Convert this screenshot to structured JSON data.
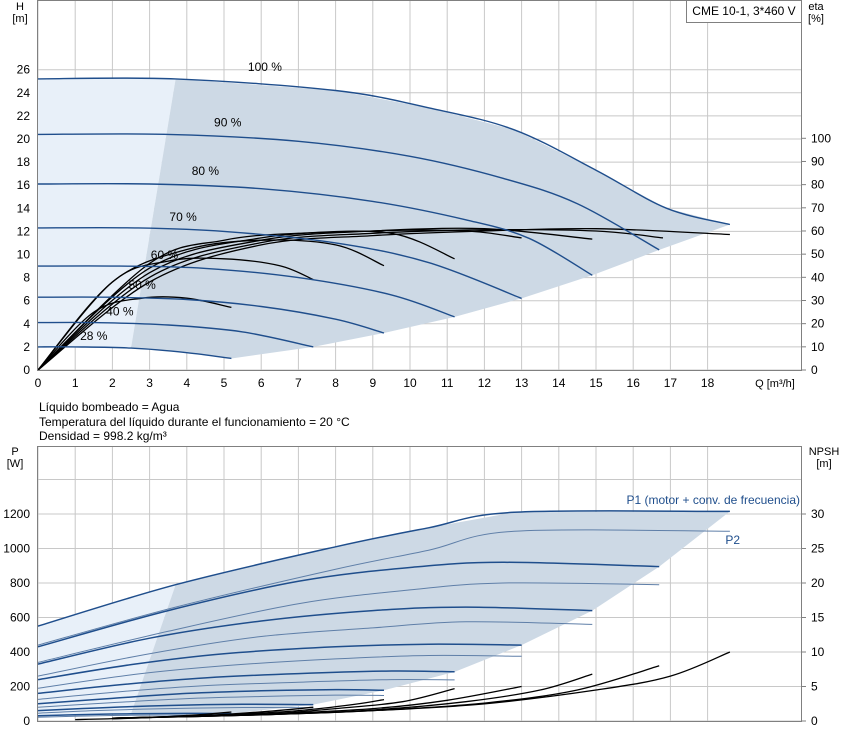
{
  "info": {
    "liquid": "Líquido bombeado = Agua",
    "temperature": "Temperatura del líquido durante el funcionamiento = 20 °C",
    "density": "Densidad = 998.2 kg/m³"
  },
  "chart_data": [
    {
      "type": "line",
      "title": "CME 10-1, 3*460 V",
      "ylabel_left": "H\n[m]",
      "ylabel_right": "eta\n[%]",
      "xlabel": "Q [m³/h]",
      "xlim": [
        0,
        19
      ],
      "ylim": [
        0,
        28
      ],
      "xticks": [
        0,
        1,
        2,
        3,
        4,
        5,
        6,
        7,
        8,
        9,
        10,
        11,
        12,
        13,
        14,
        15,
        16,
        17,
        18
      ],
      "yticks_left": [
        0,
        2,
        4,
        6,
        8,
        10,
        12,
        14,
        16,
        18,
        20,
        22,
        24,
        26
      ],
      "yticks_right": [
        0,
        10,
        20,
        30,
        40,
        50,
        60,
        70,
        80,
        90,
        100
      ],
      "right_axis_range": [
        0,
        100
      ],
      "grid": true,
      "operating_area_color": "#cdd9e5",
      "curve_color": "#1f4e8c",
      "head_curves": [
        {
          "label": "100 %",
          "points": [
            [
              0,
              25.2
            ],
            [
              3.7,
              25.2
            ],
            [
              8,
              24.2
            ],
            [
              10.5,
              22.7
            ],
            [
              12.8,
              20.8
            ],
            [
              15,
              17.3
            ],
            [
              16.9,
              14
            ],
            [
              18.6,
              12.6
            ]
          ]
        },
        {
          "label": "90 %",
          "points": [
            [
              0,
              20.4
            ],
            [
              3.5,
              20.4
            ],
            [
              7,
              19.8
            ],
            [
              10,
              18.5
            ],
            [
              12.5,
              16.6
            ],
            [
              14.5,
              14.4
            ],
            [
              16.7,
              10.4
            ]
          ]
        },
        {
          "label": "80 %",
          "points": [
            [
              0,
              16.1
            ],
            [
              3,
              16.1
            ],
            [
              6,
              15.7
            ],
            [
              9,
              14.6
            ],
            [
              11.5,
              13
            ],
            [
              13.2,
              11.4
            ],
            [
              14.9,
              8.2
            ]
          ]
        },
        {
          "label": "70 %",
          "points": [
            [
              0,
              12.3
            ],
            [
              2.6,
              12.3
            ],
            [
              5,
              12
            ],
            [
              8,
              11
            ],
            [
              10.5,
              9.3
            ],
            [
              13,
              6.2
            ]
          ]
        },
        {
          "label": "60 %",
          "points": [
            [
              0,
              9
            ],
            [
              2.2,
              9
            ],
            [
              4.5,
              8.8
            ],
            [
              7,
              8
            ],
            [
              9.5,
              6.5
            ],
            [
              11.2,
              4.6
            ]
          ]
        },
        {
          "label": "50 %",
          "points": [
            [
              0,
              6.3
            ],
            [
              1.9,
              6.3
            ],
            [
              4,
              6.1
            ],
            [
              6,
              5.5
            ],
            [
              8,
              4.4
            ],
            [
              9.3,
              3.2
            ]
          ]
        },
        {
          "label": "40 %",
          "points": [
            [
              0,
              4.1
            ],
            [
              1.5,
              4.1
            ],
            [
              3.5,
              3.9
            ],
            [
              5.5,
              3.3
            ],
            [
              7.4,
              2
            ]
          ]
        },
        {
          "label": "28 %",
          "points": [
            [
              0,
              2
            ],
            [
              1,
              2
            ],
            [
              2.5,
              1.9
            ],
            [
              4,
              1.5
            ],
            [
              5.2,
              1
            ]
          ]
        }
      ],
      "efficiency_curves": [
        {
          "points": [
            [
              0,
              0
            ],
            [
              3,
              38
            ],
            [
              6,
              54
            ],
            [
              9,
              58
            ],
            [
              12,
              60
            ],
            [
              15,
              61
            ],
            [
              18.6,
              58.5
            ]
          ]
        },
        {
          "points": [
            [
              0,
              0
            ],
            [
              3,
              40
            ],
            [
              6,
              55
            ],
            [
              9,
              59
            ],
            [
              12,
              60.5
            ],
            [
              15,
              60
            ],
            [
              16.8,
              57
            ]
          ]
        },
        {
          "points": [
            [
              0,
              0
            ],
            [
              3,
              42
            ],
            [
              6,
              56
            ],
            [
              9,
              60
            ],
            [
              12,
              61
            ],
            [
              14.9,
              56.5
            ]
          ]
        },
        {
          "points": [
            [
              0,
              0
            ],
            [
              3,
              44
            ],
            [
              6,
              57
            ],
            [
              9,
              60
            ],
            [
              11.5,
              60
            ],
            [
              13,
              57
            ]
          ]
        },
        {
          "points": [
            [
              0,
              0
            ],
            [
              3,
              46
            ],
            [
              5,
              56
            ],
            [
              7,
              59
            ],
            [
              9.5,
              59
            ],
            [
              11.2,
              48
            ]
          ]
        },
        {
          "points": [
            [
              0,
              0
            ],
            [
              2,
              38
            ],
            [
              4,
              52
            ],
            [
              6,
              56
            ],
            [
              8,
              54
            ],
            [
              9.3,
              45
            ]
          ]
        },
        {
          "points": [
            [
              0,
              0
            ],
            [
              2,
              38
            ],
            [
              3.5,
              47
            ],
            [
              5,
              48
            ],
            [
              6.5,
              45
            ],
            [
              7.4,
              39
            ]
          ]
        },
        {
          "points": [
            [
              0,
              0
            ],
            [
              1.5,
              25
            ],
            [
              2.8,
              31
            ],
            [
              4,
              31
            ],
            [
              5.2,
              27
            ]
          ]
        }
      ]
    },
    {
      "type": "line",
      "ylabel_left": "P\n[W]",
      "ylabel_right": "NPSH\n[m]",
      "xlim": [
        0,
        19
      ],
      "ylim": [
        0,
        1400
      ],
      "yticks_left": [
        0,
        200,
        400,
        600,
        800,
        1000,
        1200
      ],
      "yticks_right": [
        0,
        5,
        10,
        15,
        20,
        25,
        30
      ],
      "right_axis_range": [
        0,
        35
      ],
      "grid": true,
      "series_labels": {
        "p1": "P1 (motor + conv. de frecuencia)",
        "p2": "P2"
      },
      "p1_curves": [
        {
          "points": [
            [
              0,
              550
            ],
            [
              3.7,
              790
            ],
            [
              8,
              1010
            ],
            [
              10.5,
              1120
            ],
            [
              12.8,
              1210
            ],
            [
              18.6,
              1215
            ]
          ]
        },
        {
          "points": [
            [
              0,
              430
            ],
            [
              3.5,
              640
            ],
            [
              7,
              810
            ],
            [
              10,
              890
            ],
            [
              12.5,
              920
            ],
            [
              16.7,
              895
            ]
          ]
        },
        {
          "points": [
            [
              0,
              330
            ],
            [
              3,
              480
            ],
            [
              6,
              580
            ],
            [
              9,
              640
            ],
            [
              11.5,
              660
            ],
            [
              14.9,
              640
            ]
          ]
        },
        {
          "points": [
            [
              0,
              240
            ],
            [
              2.6,
              330
            ],
            [
              5,
              390
            ],
            [
              8,
              430
            ],
            [
              10.5,
              445
            ],
            [
              13,
              440
            ]
          ]
        },
        {
          "points": [
            [
              0,
              160
            ],
            [
              2.2,
              210
            ],
            [
              4.5,
              250
            ],
            [
              7,
              275
            ],
            [
              9.5,
              290
            ],
            [
              11.2,
              285
            ]
          ]
        },
        {
          "points": [
            [
              0,
              100
            ],
            [
              1.9,
              130
            ],
            [
              4,
              160
            ],
            [
              6,
              175
            ],
            [
              8,
              182
            ],
            [
              9.3,
              178
            ]
          ]
        },
        {
          "points": [
            [
              0,
              60
            ],
            [
              1.5,
              75
            ],
            [
              3.5,
              90
            ],
            [
              5.5,
              97
            ],
            [
              7.4,
              95
            ]
          ]
        },
        {
          "points": [
            [
              0,
              30
            ],
            [
              1,
              36
            ],
            [
              2.5,
              42
            ],
            [
              4,
              44
            ],
            [
              5.2,
              43
            ]
          ]
        }
      ],
      "p2_curves": [
        {
          "points": [
            [
              0,
              440
            ],
            [
              3.7,
              660
            ],
            [
              8,
              880
            ],
            [
              10.5,
              990
            ],
            [
              12.8,
              1100
            ],
            [
              18.6,
              1100
            ]
          ]
        },
        {
          "points": [
            [
              0,
              340
            ],
            [
              3.5,
              520
            ],
            [
              7,
              680
            ],
            [
              10,
              760
            ],
            [
              12.5,
              800
            ],
            [
              16.7,
              790
            ]
          ]
        },
        {
          "points": [
            [
              0,
              260
            ],
            [
              3,
              390
            ],
            [
              6,
              490
            ],
            [
              9,
              540
            ],
            [
              11.5,
              575
            ],
            [
              14.9,
              560
            ]
          ]
        },
        {
          "points": [
            [
              0,
              190
            ],
            [
              2.6,
              270
            ],
            [
              5,
              320
            ],
            [
              8,
              360
            ],
            [
              10.5,
              380
            ],
            [
              13,
              375
            ]
          ]
        },
        {
          "points": [
            [
              0,
              125
            ],
            [
              2.2,
              170
            ],
            [
              4.5,
              205
            ],
            [
              7,
              225
            ],
            [
              9.5,
              240
            ],
            [
              11.2,
              238
            ]
          ]
        },
        {
          "points": [
            [
              0,
              80
            ],
            [
              1.9,
              105
            ],
            [
              4,
              130
            ],
            [
              6,
              142
            ],
            [
              8,
              150
            ],
            [
              9.3,
              148
            ]
          ]
        },
        {
          "points": [
            [
              0,
              45
            ],
            [
              1.5,
              60
            ],
            [
              3.5,
              72
            ],
            [
              5.5,
              78
            ],
            [
              7.4,
              77
            ]
          ]
        },
        {
          "points": [
            [
              0,
              22
            ],
            [
              1,
              28
            ],
            [
              2.5,
              33
            ],
            [
              4,
              35
            ],
            [
              5.2,
              34
            ]
          ]
        }
      ],
      "npsh_curves": [
        {
          "points": [
            [
              2,
              0.4
            ],
            [
              6,
              0.9
            ],
            [
              9,
              1.5
            ],
            [
              12,
              2.5
            ],
            [
              15,
              4.5
            ],
            [
              17,
              6.5
            ],
            [
              18.6,
              10
            ]
          ]
        },
        {
          "points": [
            [
              2,
              0.4
            ],
            [
              6,
              0.9
            ],
            [
              9,
              1.5
            ],
            [
              12,
              2.6
            ],
            [
              14.5,
              4.5
            ],
            [
              16.7,
              8
            ]
          ]
        },
        {
          "points": [
            [
              2,
              0.4
            ],
            [
              6,
              0.9
            ],
            [
              9,
              1.6
            ],
            [
              11.5,
              2.8
            ],
            [
              13.5,
              4.5
            ],
            [
              14.9,
              6.8
            ]
          ]
        },
        {
          "points": [
            [
              2,
              0.4
            ],
            [
              6,
              1
            ],
            [
              9,
              1.8
            ],
            [
              11,
              3
            ],
            [
              13,
              5
            ]
          ]
        },
        {
          "points": [
            [
              2,
              0.4
            ],
            [
              6,
              1
            ],
            [
              8,
              1.8
            ],
            [
              9.8,
              2.8
            ],
            [
              11.2,
              4.7
            ]
          ]
        },
        {
          "points": [
            [
              2,
              0.4
            ],
            [
              5,
              0.9
            ],
            [
              7,
              1.5
            ],
            [
              8.5,
              2.4
            ],
            [
              9.3,
              3.1
            ]
          ]
        },
        {
          "points": [
            [
              2,
              0.3
            ],
            [
              4.5,
              0.8
            ],
            [
              6.2,
              1.4
            ],
            [
              7.4,
              2
            ]
          ]
        },
        {
          "points": [
            [
              1,
              0.2
            ],
            [
              3,
              0.5
            ],
            [
              4.3,
              0.9
            ],
            [
              5.2,
              1.3
            ]
          ]
        }
      ]
    }
  ]
}
